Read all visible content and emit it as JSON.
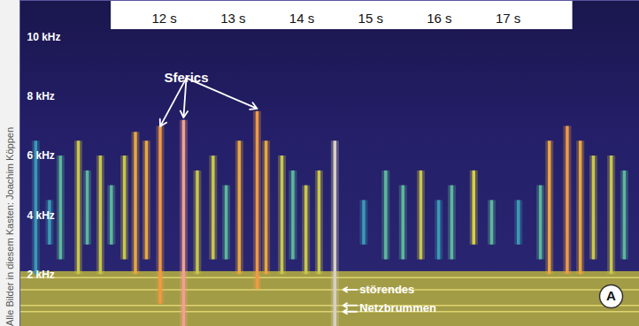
{
  "chart_data": {
    "type": "spectrogram",
    "xlim": [
      9.9,
      18.91
    ],
    "ylim": [
      0.25,
      11.25
    ],
    "xticks": [
      {
        "value": 12,
        "label": "12 s"
      },
      {
        "value": 13,
        "label": "13 s"
      },
      {
        "value": 14,
        "label": "14 s"
      },
      {
        "value": 15,
        "label": "15 s"
      },
      {
        "value": 16,
        "label": "16 s"
      },
      {
        "value": 17,
        "label": "17 s"
      }
    ],
    "yticks": [
      {
        "value": 2,
        "label": "2 kHz"
      },
      {
        "value": 4,
        "label": "4 kHz"
      },
      {
        "value": 6,
        "label": "6 kHz"
      },
      {
        "value": 8,
        "label": "8 kHz"
      },
      {
        "value": 10,
        "label": "10 kHz"
      }
    ],
    "sferics": {
      "x": [
        10.13,
        10.33,
        10.49,
        10.75,
        10.88,
        11.07,
        11.23,
        11.42,
        11.58,
        11.74,
        11.94,
        12.28,
        12.48,
        12.71,
        12.9,
        13.09,
        13.35,
        13.48,
        13.71,
        13.87,
        14.06,
        14.25,
        14.48,
        14.9,
        15.22,
        15.47,
        15.73,
        15.99,
        16.18,
        16.5,
        16.76,
        17.15,
        17.47,
        17.6,
        17.86,
        18.05,
        18.24,
        18.5,
        18.69
      ],
      "y_low": [
        2.0,
        3.0,
        2.5,
        2.0,
        3.0,
        2.0,
        3.0,
        2.5,
        2.0,
        2.5,
        1.0,
        0.25,
        2.0,
        2.5,
        2.5,
        2.0,
        1.5,
        2.0,
        2.0,
        2.5,
        2.0,
        2.0,
        0.25,
        3.0,
        2.5,
        2.5,
        2.5,
        2.5,
        2.5,
        3.0,
        3.0,
        3.0,
        2.5,
        2.0,
        2.0,
        2.0,
        2.5,
        2.0,
        2.5
      ],
      "y_high": [
        6.5,
        4.5,
        6.0,
        6.5,
        5.5,
        6.0,
        5.0,
        6.0,
        6.8,
        6.5,
        7.0,
        7.2,
        5.5,
        6.0,
        5.0,
        6.5,
        7.5,
        6.5,
        6.0,
        5.5,
        5.0,
        5.5,
        6.5,
        4.5,
        5.5,
        5.0,
        5.5,
        4.5,
        5.0,
        5.5,
        4.5,
        4.5,
        5.0,
        6.5,
        7.0,
        6.5,
        6.0,
        6.0,
        5.5
      ],
      "colors": [
        "#3a9bb5",
        "#3a9bb5",
        "#5cb89a",
        "#c9c74a",
        "#5cb89a",
        "#c9c74a",
        "#5cb89a",
        "#c9c74a",
        "#e9a83e",
        "#e9a83e",
        "#ef9a45",
        "#f2a08f",
        "#c9c74a",
        "#c9c74a",
        "#5cb89a",
        "#e9a83e",
        "#ef9a45",
        "#e9a83e",
        "#c9c74a",
        "#5cb89a",
        "#c9c74a",
        "#c9c74a",
        "#d8d0c0",
        "#3a9bb5",
        "#5cb89a",
        "#5cb89a",
        "#c9c74a",
        "#3a9bb5",
        "#5cb89a",
        "#d8d040",
        "#5cb89a",
        "#3a9bb5",
        "#5cb89a",
        "#e9a83e",
        "#ef9a45",
        "#e9a83e",
        "#c9c74a",
        "#c9c74a",
        "#5cb89a"
      ]
    },
    "hum_band": {
      "y_low": 0.25,
      "y_high": 2.1,
      "color": "#b8b23e"
    },
    "hum_lines": {
      "values": [
        1.9,
        1.49,
        0.96,
        0.75
      ],
      "color": "#ece27a"
    },
    "annotations": [
      {
        "text": "Sferics",
        "x": 12.32,
        "y": 8.63,
        "arrows": [
          [
            11.94,
            7.0
          ],
          [
            12.28,
            7.3
          ],
          [
            13.35,
            7.6
          ]
        ]
      },
      {
        "text": "störendes",
        "x": 14.8,
        "y": 1.49,
        "arrows": [
          [
            14.6,
            1.49
          ]
        ]
      },
      {
        "text": "Netzbrummen",
        "x": 14.8,
        "y": 0.86,
        "arrows": [
          [
            14.6,
            0.96
          ],
          [
            14.6,
            0.75
          ]
        ]
      }
    ],
    "panel_label": "A",
    "credit": "Alle Bilder in diesem Kasten: Joachim Köppen"
  }
}
